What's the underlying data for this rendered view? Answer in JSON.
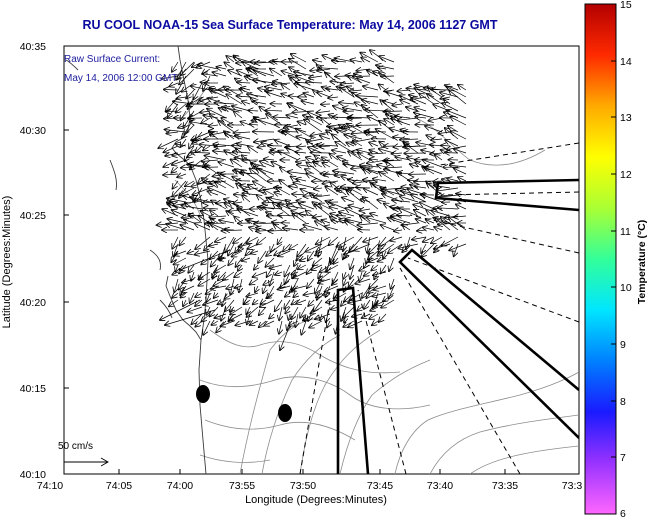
{
  "title": "RU COOL  NOAA-15  Sea Surface Temperature:  May 14, 2006 1127 GMT",
  "annotation": {
    "line1": "Raw Surface Current:",
    "line2": "May 14, 2006 12:00 GMT",
    "color": "#2020a0"
  },
  "axes": {
    "xlabel": "Longitude (Degrees:Minutes)",
    "ylabel": "Latitude (Degrees:Minutes)",
    "x_ticks": [
      "74:10",
      "74:05",
      "74:00",
      "73:55",
      "73:50",
      "73:45",
      "73:40",
      "73:35",
      "73:3"
    ],
    "y_ticks": [
      "40:35",
      "40:30",
      "40:25",
      "40:20",
      "40:15",
      "40:10"
    ]
  },
  "scale": {
    "label": "50 cm/s"
  },
  "colorbar": {
    "label": "Temperature (°C)",
    "ticks": [
      "15",
      "14",
      "13",
      "12",
      "11",
      "10",
      "9",
      "8",
      "7",
      "6"
    ],
    "range": [
      6,
      15
    ],
    "colors": [
      "#ff66ff",
      "#9933ff",
      "#1a1aff",
      "#0080ff",
      "#00e6ff",
      "#33ff99",
      "#aaff33",
      "#ffff00",
      "#ffaa00",
      "#ff2a00",
      "#b30000"
    ]
  }
}
